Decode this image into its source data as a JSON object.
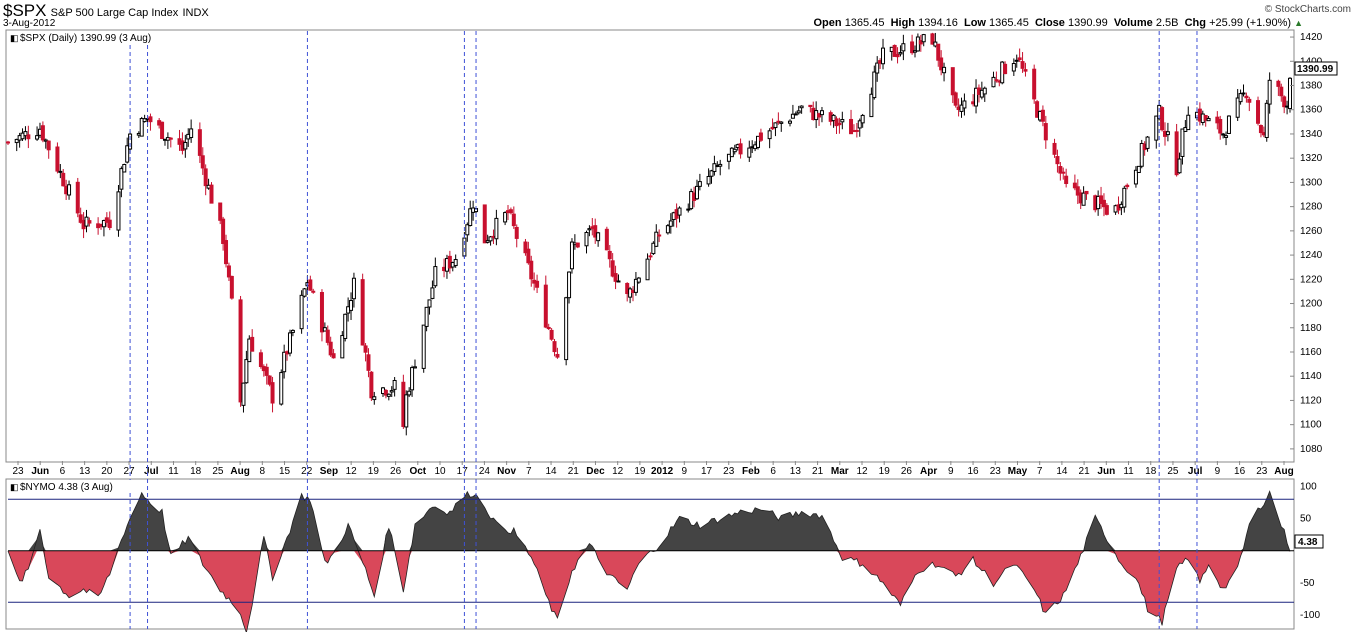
{
  "header": {
    "symbol": "$SPX",
    "name": "S&P 500 Large Cap Index",
    "exchange": "INDX",
    "date": "3-Aug-2012",
    "brand": "© StockCharts.com",
    "open_label": "Open",
    "open": "1365.45",
    "high_label": "High",
    "high": "1394.16",
    "low_label": "Low",
    "low": "1365.45",
    "close_label": "Close",
    "close": "1390.99",
    "volume_label": "Volume",
    "volume": "2.5B",
    "chg_label": "Chg",
    "chg": "+25.99 (+1.90%)",
    "chg_arrow": "▲"
  },
  "chart_data": [
    {
      "type": "candlestick",
      "legend": "$SPX (Daily) 1390.99 (3 Aug)",
      "last_value_label": "1390.99",
      "ylim": [
        1070,
        1425
      ],
      "y_ticks": [
        1080,
        1100,
        1120,
        1140,
        1160,
        1180,
        1200,
        1220,
        1240,
        1260,
        1280,
        1300,
        1320,
        1340,
        1360,
        1380,
        1400,
        1420
      ],
      "x_tick_labels": [
        "23",
        "Jun",
        "6",
        "13",
        "20",
        "27",
        "Jul",
        "11",
        "18",
        "25",
        "Aug",
        "8",
        "15",
        "22",
        "Sep",
        "12",
        "19",
        "26",
        "Oct",
        "10",
        "17",
        "24",
        "Nov",
        "7",
        "14",
        "21",
        "Dec",
        "12",
        "19",
        "2012",
        "9",
        "17",
        "23",
        "Feb",
        "6",
        "13",
        "21",
        "Mar",
        "12",
        "19",
        "26",
        "Apr",
        "9",
        "16",
        "23",
        "May",
        "7",
        "14",
        "21",
        "Jun",
        "11",
        "18",
        "25",
        "Jul",
        "9",
        "16",
        "23",
        "Aug"
      ],
      "bold_tick_labels": [
        "Jun",
        "Jul",
        "Aug",
        "Sep",
        "Oct",
        "Nov",
        "Dec",
        "2012",
        "Feb",
        "Mar",
        "Apr",
        "May",
        "Jun",
        "Jul",
        "Aug"
      ],
      "x_range": [
        "2011-05-20",
        "2012-08-03"
      ],
      "closes_approx": [
        [
          "2011-05-20",
          1333
        ],
        [
          "2011-05-31",
          1345
        ],
        [
          "2011-06-15",
          1265
        ],
        [
          "2011-06-24",
          1268
        ],
        [
          "2011-07-01",
          1340
        ],
        [
          "2011-07-07",
          1353
        ],
        [
          "2011-07-19",
          1327
        ],
        [
          "2011-07-22",
          1345
        ],
        [
          "2011-08-02",
          1254
        ],
        [
          "2011-08-05",
          1199
        ],
        [
          "2011-08-08",
          1119
        ],
        [
          "2011-08-11",
          1172
        ],
        [
          "2011-08-19",
          1123
        ],
        [
          "2011-08-26",
          1177
        ],
        [
          "2011-08-31",
          1219
        ],
        [
          "2011-09-09",
          1154
        ],
        [
          "2011-09-16",
          1216
        ],
        [
          "2011-09-22",
          1129
        ],
        [
          "2011-09-30",
          1131
        ],
        [
          "2011-10-03",
          1099
        ],
        [
          "2011-10-04",
          1123
        ],
        [
          "2011-10-14",
          1224
        ],
        [
          "2011-10-21",
          1238
        ],
        [
          "2011-10-27",
          1284
        ],
        [
          "2011-10-31",
          1253
        ],
        [
          "2011-11-08",
          1275
        ],
        [
          "2011-11-17",
          1216
        ],
        [
          "2011-11-25",
          1158
        ],
        [
          "2011-11-30",
          1246
        ],
        [
          "2011-12-07",
          1261
        ],
        [
          "2011-12-19",
          1205
        ],
        [
          "2011-12-30",
          1257
        ],
        [
          "2012-01-20",
          1315
        ],
        [
          "2012-02-17",
          1361
        ],
        [
          "2012-03-06",
          1343
        ],
        [
          "2012-03-16",
          1404
        ],
        [
          "2012-04-02",
          1419
        ],
        [
          "2012-04-10",
          1358
        ],
        [
          "2012-04-20",
          1378
        ],
        [
          "2012-05-01",
          1405
        ],
        [
          "2012-05-18",
          1295
        ],
        [
          "2012-06-01",
          1278
        ],
        [
          "2012-06-04",
          1278
        ],
        [
          "2012-06-19",
          1357
        ],
        [
          "2012-06-25",
          1313
        ],
        [
          "2012-06-29",
          1362
        ],
        [
          "2012-07-11",
          1341
        ],
        [
          "2012-07-19",
          1376
        ],
        [
          "2012-07-25",
          1337
        ],
        [
          "2012-07-27",
          1385
        ],
        [
          "2012-08-02",
          1365
        ],
        [
          "2012-08-03",
          1391
        ]
      ]
    },
    {
      "type": "area",
      "legend": "$NYMO 4.38 (3 Aug)",
      "last_value_label": "4.38",
      "ylim": [
        -120,
        110
      ],
      "y_ticks": [
        -100,
        -50,
        0,
        50,
        100
      ],
      "reference_lines": [
        80,
        -80
      ],
      "positive_color": "#444444",
      "negative_color": "#d9485a",
      "values_approx": [
        [
          "2011-05-20",
          -5
        ],
        [
          "2011-05-24",
          -50
        ],
        [
          "2011-05-27",
          -30
        ],
        [
          "2011-05-31",
          35
        ],
        [
          "2011-06-03",
          -40
        ],
        [
          "2011-06-10",
          -70
        ],
        [
          "2011-06-15",
          -60
        ],
        [
          "2011-06-20",
          -75
        ],
        [
          "2011-06-24",
          -35
        ],
        [
          "2011-06-29",
          30
        ],
        [
          "2011-07-05",
          90
        ],
        [
          "2011-07-08",
          75
        ],
        [
          "2011-07-12",
          60
        ],
        [
          "2011-07-15",
          -10
        ],
        [
          "2011-07-21",
          20
        ],
        [
          "2011-07-26",
          -20
        ],
        [
          "2011-08-01",
          -60
        ],
        [
          "2011-08-05",
          -80
        ],
        [
          "2011-08-08",
          -95
        ],
        [
          "2011-08-10",
          -125
        ],
        [
          "2011-08-12",
          -80
        ],
        [
          "2011-08-16",
          20
        ],
        [
          "2011-08-19",
          -40
        ],
        [
          "2011-08-24",
          20
        ],
        [
          "2011-08-29",
          85
        ],
        [
          "2011-09-01",
          80
        ],
        [
          "2011-09-06",
          -20
        ],
        [
          "2011-09-09",
          -5
        ],
        [
          "2011-09-14",
          40
        ],
        [
          "2011-09-20",
          -30
        ],
        [
          "2011-09-23",
          -70
        ],
        [
          "2011-09-28",
          40
        ],
        [
          "2011-10-03",
          -60
        ],
        [
          "2011-10-07",
          40
        ],
        [
          "2011-10-13",
          70
        ],
        [
          "2011-10-19",
          60
        ],
        [
          "2011-10-24",
          85
        ],
        [
          "2011-10-27",
          90
        ],
        [
          "2011-10-31",
          70
        ],
        [
          "2011-11-04",
          40
        ],
        [
          "2011-11-10",
          30
        ],
        [
          "2011-11-16",
          -10
        ],
        [
          "2011-11-22",
          -80
        ],
        [
          "2011-11-25",
          -110
        ],
        [
          "2011-11-30",
          -30
        ],
        [
          "2011-12-06",
          10
        ],
        [
          "2011-12-13",
          -40
        ],
        [
          "2011-12-19",
          -60
        ],
        [
          "2011-12-23",
          -20
        ],
        [
          "2011-12-30",
          10
        ],
        [
          "2012-01-06",
          50
        ],
        [
          "2012-01-13",
          40
        ],
        [
          "2012-01-20",
          50
        ],
        [
          "2012-01-27",
          60
        ],
        [
          "2012-02-03",
          65
        ],
        [
          "2012-02-10",
          50
        ],
        [
          "2012-02-17",
          60
        ],
        [
          "2012-02-24",
          55
        ],
        [
          "2012-03-02",
          -10
        ],
        [
          "2012-03-09",
          -20
        ],
        [
          "2012-03-16",
          -50
        ],
        [
          "2012-03-22",
          -85
        ],
        [
          "2012-03-28",
          -30
        ],
        [
          "2012-04-03",
          -20
        ],
        [
          "2012-04-10",
          -40
        ],
        [
          "2012-04-16",
          -15
        ],
        [
          "2012-04-23",
          -50
        ],
        [
          "2012-04-30",
          -20
        ],
        [
          "2012-05-07",
          -60
        ],
        [
          "2012-05-11",
          -100
        ],
        [
          "2012-05-17",
          -70
        ],
        [
          "2012-05-22",
          -20
        ],
        [
          "2012-05-28",
          50
        ],
        [
          "2012-06-01",
          20
        ],
        [
          "2012-06-06",
          -20
        ],
        [
          "2012-06-11",
          -40
        ],
        [
          "2012-06-15",
          -90
        ],
        [
          "2012-06-20",
          -110
        ],
        [
          "2012-06-25",
          -30
        ],
        [
          "2012-06-29",
          -10
        ],
        [
          "2012-07-03",
          -50
        ],
        [
          "2012-07-06",
          -20
        ],
        [
          "2012-07-11",
          -60
        ],
        [
          "2012-07-16",
          -30
        ],
        [
          "2012-07-20",
          40
        ],
        [
          "2012-07-24",
          70
        ],
        [
          "2012-07-27",
          90
        ],
        [
          "2012-07-31",
          40
        ],
        [
          "2012-08-03",
          4
        ]
      ]
    }
  ]
}
